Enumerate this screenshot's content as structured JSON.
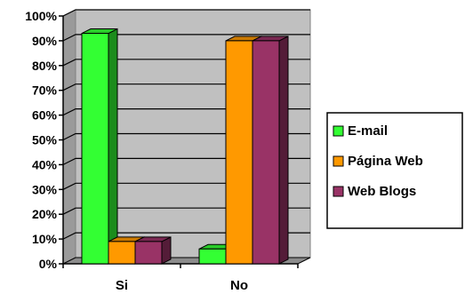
{
  "chart_data": {
    "type": "bar",
    "title": "",
    "xlabel": "",
    "ylabel": "",
    "categories": [
      "Si",
      "No"
    ],
    "series": [
      {
        "name": "E-mail",
        "values": [
          93,
          6
        ],
        "color": "#33ff33"
      },
      {
        "name": "Página Web",
        "values": [
          9,
          90
        ],
        "color": "#ff9900"
      },
      {
        "name": "Web Blogs",
        "values": [
          9,
          90
        ],
        "color": "#993366"
      }
    ],
    "ylim": [
      0,
      100
    ],
    "yticks": [
      "0%",
      "10%",
      "20%",
      "30%",
      "40%",
      "50%",
      "60%",
      "70%",
      "80%",
      "90%",
      "100%"
    ],
    "grid": true,
    "legend": "right",
    "style": "3d-clustered-column",
    "plot_background": "#c0c0c0"
  }
}
